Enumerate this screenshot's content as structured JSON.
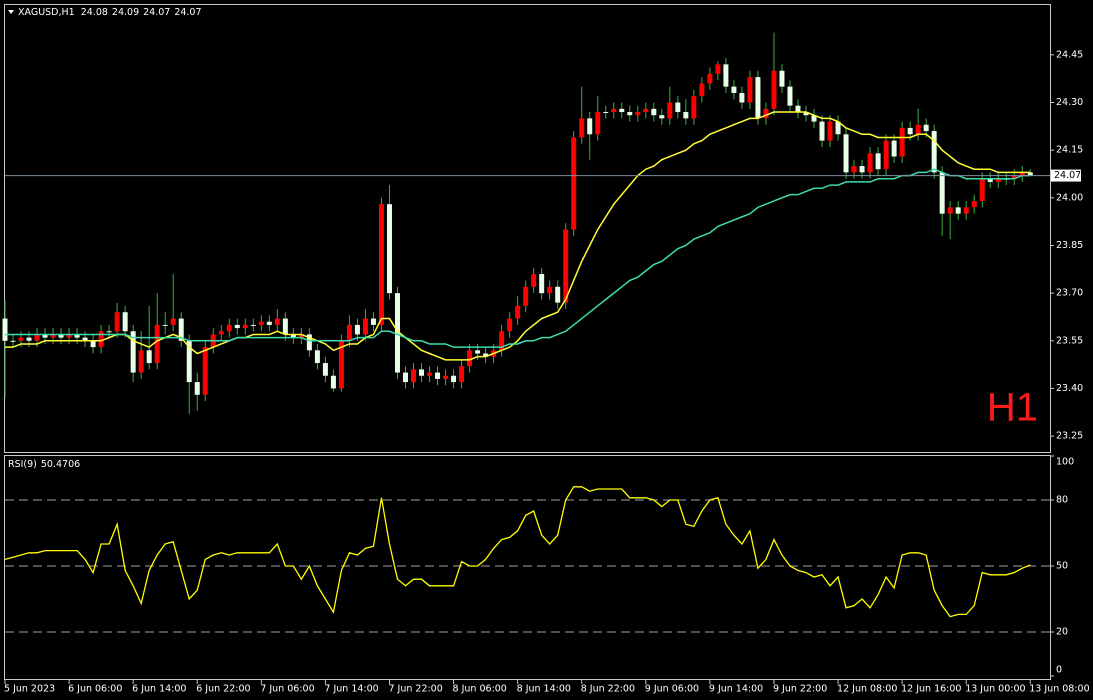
{
  "chart_data": [
    {
      "type": "candlestick",
      "title": "XAGUSD,H1",
      "timeframe_label": "H1",
      "categories": [
        "5 Jun 2023",
        null,
        null,
        null,
        null,
        null,
        null,
        null,
        "6 Jun 06:00",
        null,
        null,
        null,
        null,
        null,
        null,
        null,
        "6 Jun 14:00",
        null,
        null,
        null,
        null,
        null,
        null,
        null,
        "6 Jun 22:00",
        null,
        null,
        null,
        null,
        null,
        null,
        null,
        "7 Jun 06:00",
        null,
        null,
        null,
        null,
        null,
        null,
        null,
        "7 Jun 14:00",
        null,
        null,
        null,
        null,
        null,
        null,
        null,
        "7 Jun 22:00",
        null,
        null,
        null,
        null,
        null,
        null,
        null,
        "8 Jun 06:00",
        null,
        null,
        null,
        null,
        null,
        null,
        null,
        "8 Jun 14:00",
        null,
        null,
        null,
        null,
        null,
        null,
        null,
        "8 Jun 22:00",
        null,
        null,
        null,
        null,
        null,
        null,
        null,
        "9 Jun 06:00",
        null,
        null,
        null,
        null,
        null,
        null,
        null,
        "9 Jun 14:00",
        null,
        null,
        null,
        null,
        null,
        null,
        null,
        "9 Jun 22:00",
        null,
        null,
        null,
        null,
        null,
        null,
        null,
        "12 Jun 08:00",
        null,
        null,
        null,
        null,
        null,
        null,
        null,
        "12 Jun 16:00",
        null,
        null,
        null,
        null,
        null,
        null,
        null,
        "13 Jun 00:00",
        null,
        null,
        null,
        null,
        null,
        null,
        null,
        "13 Jun 08:00"
      ],
      "open": [
        23.62,
        23.55,
        23.55,
        23.56,
        23.55,
        23.57,
        23.56,
        23.57,
        23.56,
        23.57,
        23.56,
        23.55,
        23.53,
        23.58,
        23.58,
        23.64,
        23.58,
        23.45,
        23.52,
        23.48,
        23.6,
        23.6,
        23.62,
        23.55,
        23.42,
        23.38,
        23.53,
        23.57,
        23.58,
        23.6,
        23.59,
        23.6,
        23.6,
        23.61,
        23.6,
        23.62,
        23.57,
        23.56,
        23.57,
        23.52,
        23.48,
        23.44,
        23.4,
        23.55,
        23.6,
        23.57,
        23.62,
        23.6,
        23.98,
        23.7,
        23.45,
        23.42,
        23.46,
        23.44,
        23.45,
        23.43,
        23.44,
        23.42,
        23.47,
        23.52,
        23.51,
        23.5,
        23.52,
        23.58,
        23.62,
        23.66,
        23.72,
        23.76,
        23.7,
        23.72,
        23.67,
        23.9,
        24.19,
        24.25,
        24.2,
        24.27,
        24.27,
        24.28,
        24.27,
        24.26,
        24.27,
        24.28,
        24.26,
        24.25,
        24.3,
        24.27,
        24.25,
        24.32,
        24.36,
        24.39,
        24.42,
        24.35,
        24.33,
        24.3,
        24.38,
        24.25,
        24.28,
        24.4,
        24.35,
        24.29,
        24.27,
        24.26,
        24.24,
        24.18,
        24.24,
        24.2,
        24.08,
        24.1,
        24.08,
        24.14,
        24.09,
        24.18,
        24.13,
        24.22,
        24.2,
        24.23,
        24.21,
        24.08,
        23.95,
        23.97,
        23.95,
        23.97,
        23.99,
        24.06,
        24.05,
        24.06,
        24.06,
        24.07,
        24.08
      ],
      "high": [
        23.68,
        23.57,
        23.58,
        23.58,
        23.59,
        23.59,
        23.59,
        23.59,
        23.59,
        23.59,
        23.58,
        23.57,
        23.6,
        23.6,
        23.67,
        23.66,
        23.6,
        23.58,
        23.66,
        23.7,
        23.64,
        23.76,
        23.64,
        23.57,
        23.45,
        23.55,
        23.59,
        23.6,
        23.62,
        23.62,
        23.62,
        23.62,
        23.63,
        23.63,
        23.65,
        23.64,
        23.59,
        23.59,
        23.59,
        23.54,
        23.5,
        23.46,
        23.57,
        23.63,
        23.62,
        23.65,
        23.64,
        24.0,
        24.04,
        23.72,
        23.47,
        23.48,
        23.48,
        23.47,
        23.47,
        23.46,
        23.46,
        23.49,
        23.54,
        23.54,
        23.53,
        23.54,
        23.6,
        23.64,
        23.69,
        23.74,
        23.78,
        23.78,
        23.74,
        23.74,
        23.92,
        24.21,
        24.35,
        24.27,
        24.32,
        24.29,
        24.3,
        24.3,
        24.29,
        24.29,
        24.3,
        24.3,
        24.28,
        24.35,
        24.32,
        24.31,
        24.34,
        24.38,
        24.41,
        24.43,
        24.44,
        24.37,
        24.35,
        24.4,
        24.4,
        24.3,
        24.52,
        24.42,
        24.37,
        24.31,
        24.29,
        24.28,
        24.26,
        24.26,
        24.26,
        24.22,
        24.12,
        24.12,
        24.16,
        24.16,
        24.2,
        24.2,
        24.24,
        24.24,
        24.28,
        24.25,
        24.23,
        24.1,
        23.99,
        23.99,
        23.99,
        24.01,
        24.08,
        24.08,
        24.08,
        24.08,
        24.09,
        24.1,
        24.09
      ],
      "low": [
        23.37,
        23.53,
        23.53,
        23.53,
        23.53,
        23.54,
        23.54,
        23.54,
        23.54,
        23.54,
        23.53,
        23.51,
        23.51,
        23.56,
        23.56,
        23.56,
        23.42,
        23.43,
        23.46,
        23.46,
        23.57,
        23.58,
        23.53,
        23.32,
        23.33,
        23.36,
        23.51,
        23.55,
        23.56,
        23.57,
        23.57,
        23.58,
        23.58,
        23.58,
        23.58,
        23.55,
        23.54,
        23.54,
        23.5,
        23.46,
        23.42,
        23.39,
        23.39,
        23.53,
        23.55,
        23.55,
        23.58,
        23.58,
        23.68,
        23.43,
        23.4,
        23.4,
        23.42,
        23.42,
        23.41,
        23.41,
        23.4,
        23.4,
        23.45,
        23.49,
        23.48,
        23.48,
        23.5,
        23.56,
        23.6,
        23.64,
        23.7,
        23.68,
        23.68,
        23.65,
        23.65,
        23.88,
        24.17,
        24.12,
        24.18,
        24.25,
        24.25,
        24.25,
        24.24,
        24.24,
        24.25,
        24.24,
        24.23,
        24.23,
        24.25,
        24.23,
        24.23,
        24.3,
        24.34,
        24.37,
        24.33,
        24.31,
        24.28,
        24.28,
        24.23,
        24.23,
        24.26,
        24.33,
        24.27,
        24.25,
        24.24,
        24.22,
        24.16,
        24.16,
        24.18,
        24.06,
        24.06,
        24.06,
        24.06,
        24.07,
        24.07,
        24.11,
        24.11,
        24.18,
        24.18,
        24.19,
        24.06,
        23.88,
        23.87,
        23.93,
        23.93,
        23.95,
        23.97,
        24.03,
        24.03,
        24.04,
        24.04,
        24.05,
        24.07
      ],
      "close": [
        23.55,
        23.55,
        23.56,
        23.55,
        23.57,
        23.56,
        23.57,
        23.56,
        23.57,
        23.56,
        23.55,
        23.53,
        23.58,
        23.58,
        23.64,
        23.58,
        23.45,
        23.52,
        23.48,
        23.6,
        23.6,
        23.62,
        23.55,
        23.42,
        23.38,
        23.53,
        23.57,
        23.58,
        23.6,
        23.59,
        23.6,
        23.6,
        23.61,
        23.6,
        23.62,
        23.57,
        23.56,
        23.57,
        23.52,
        23.48,
        23.44,
        23.4,
        23.55,
        23.6,
        23.57,
        23.62,
        23.6,
        23.98,
        23.7,
        23.45,
        23.42,
        23.46,
        23.44,
        23.45,
        23.43,
        23.44,
        23.42,
        23.47,
        23.52,
        23.51,
        23.5,
        23.52,
        23.58,
        23.62,
        23.66,
        23.72,
        23.76,
        23.7,
        23.72,
        23.67,
        23.9,
        24.19,
        24.25,
        24.2,
        24.27,
        24.27,
        24.28,
        24.27,
        24.26,
        24.27,
        24.28,
        24.26,
        24.25,
        24.3,
        24.27,
        24.25,
        24.32,
        24.36,
        24.39,
        24.42,
        24.35,
        24.33,
        24.3,
        24.38,
        24.25,
        24.28,
        24.4,
        24.35,
        24.29,
        24.27,
        24.26,
        24.24,
        24.18,
        24.24,
        24.2,
        24.08,
        24.1,
        24.08,
        24.14,
        24.09,
        24.18,
        24.13,
        24.22,
        24.2,
        24.23,
        24.21,
        24.08,
        23.95,
        23.97,
        23.95,
        23.97,
        23.99,
        24.06,
        24.05,
        24.06,
        24.06,
        24.07,
        24.08,
        24.07
      ],
      "up_color": "#ff0000",
      "down_color": "#e8ffe8",
      "wick_color": "#3cb043",
      "series": [
        {
          "color": "#ffff33",
          "values": [
            23.53,
            23.53,
            23.54,
            23.54,
            23.54,
            23.55,
            23.55,
            23.55,
            23.55,
            23.55,
            23.55,
            23.55,
            23.55,
            23.56,
            23.57,
            23.57,
            23.55,
            23.54,
            23.53,
            23.55,
            23.56,
            23.57,
            23.56,
            23.53,
            23.51,
            23.52,
            23.53,
            23.54,
            23.55,
            23.56,
            23.56,
            23.57,
            23.57,
            23.57,
            23.58,
            23.57,
            23.57,
            23.57,
            23.56,
            23.55,
            23.54,
            23.52,
            23.53,
            23.54,
            23.54,
            23.56,
            23.57,
            23.62,
            23.62,
            23.58,
            23.56,
            23.54,
            23.52,
            23.51,
            23.5,
            23.49,
            23.49,
            23.49,
            23.49,
            23.5,
            23.5,
            23.51,
            23.52,
            23.53,
            23.55,
            23.58,
            23.6,
            23.62,
            23.63,
            23.64,
            23.68,
            23.74,
            23.8,
            23.85,
            23.9,
            23.94,
            23.98,
            24.01,
            24.04,
            24.07,
            24.09,
            24.1,
            24.12,
            24.13,
            24.14,
            24.15,
            24.17,
            24.18,
            24.2,
            24.21,
            24.22,
            24.23,
            24.24,
            24.25,
            24.25,
            24.26,
            24.27,
            24.27,
            24.27,
            24.27,
            24.27,
            24.26,
            24.25,
            24.25,
            24.24,
            24.22,
            24.21,
            24.2,
            24.2,
            24.19,
            24.19,
            24.19,
            24.19,
            24.19,
            24.2,
            24.2,
            24.18,
            24.15,
            24.13,
            24.11,
            24.1,
            24.09,
            24.09,
            24.09,
            24.08,
            24.08,
            24.08,
            24.08,
            24.08
          ]
        },
        {
          "color": "#3cdcb0",
          "values": [
            23.57,
            23.57,
            23.57,
            23.57,
            23.57,
            23.57,
            23.57,
            23.57,
            23.57,
            23.57,
            23.57,
            23.57,
            23.57,
            23.57,
            23.57,
            23.57,
            23.56,
            23.56,
            23.56,
            23.56,
            23.56,
            23.56,
            23.56,
            23.55,
            23.55,
            23.55,
            23.55,
            23.55,
            23.55,
            23.56,
            23.56,
            23.56,
            23.56,
            23.56,
            23.56,
            23.56,
            23.56,
            23.56,
            23.55,
            23.55,
            23.55,
            23.55,
            23.55,
            23.55,
            23.56,
            23.56,
            23.56,
            23.58,
            23.58,
            23.57,
            23.56,
            23.55,
            23.55,
            23.54,
            23.54,
            23.54,
            23.53,
            23.53,
            23.53,
            23.53,
            23.53,
            23.53,
            23.53,
            23.54,
            23.54,
            23.55,
            23.55,
            23.56,
            23.56,
            23.57,
            23.58,
            23.6,
            23.62,
            23.64,
            23.66,
            23.68,
            23.7,
            23.72,
            23.74,
            23.75,
            23.77,
            23.79,
            23.8,
            23.82,
            23.84,
            23.85,
            23.87,
            23.88,
            23.89,
            23.91,
            23.92,
            23.93,
            23.94,
            23.95,
            23.97,
            23.98,
            23.99,
            24.0,
            24.01,
            24.01,
            24.02,
            24.03,
            24.03,
            24.04,
            24.04,
            24.05,
            24.05,
            24.05,
            24.05,
            24.06,
            24.06,
            24.06,
            24.07,
            24.07,
            24.08,
            24.08,
            24.09,
            24.08,
            24.07,
            24.07,
            24.06,
            24.06,
            24.06,
            24.06,
            24.06,
            24.06,
            24.06,
            24.07,
            24.07
          ]
        }
      ],
      "ylim": [
        23.2,
        24.61
      ],
      "yticks": [
        24.45,
        {
          "value": 24.3,
          "label": "24.30"
        },
        24.15,
        {
          "value": 24,
          "label": "24.00"
        },
        23.85,
        {
          "value": 23.7,
          "label": "23.70"
        },
        23.55,
        {
          "value": 23.4,
          "label": "23.40"
        },
        23.25
      ],
      "grid": false
    },
    {
      "type": "line",
      "title": "RSI(9)",
      "series": [
        {
          "color": "#ffff00",
          "values": [
            53,
            54,
            55,
            56,
            56,
            57,
            57,
            57,
            57,
            57,
            53,
            47,
            60,
            60,
            69,
            48,
            41,
            33,
            48,
            55,
            60,
            61,
            48,
            35,
            39,
            53,
            55,
            56,
            55,
            56,
            56,
            56,
            56,
            56,
            60,
            50,
            50,
            44,
            50,
            41,
            35,
            29,
            48,
            56,
            55,
            58,
            59,
            81,
            60,
            44,
            41,
            44,
            44,
            41,
            41,
            41,
            41,
            52,
            50,
            50,
            53,
            58,
            62,
            63,
            66,
            73,
            75,
            64,
            60,
            64,
            80,
            86,
            86,
            84,
            85,
            85,
            85,
            85,
            81,
            81,
            81,
            80,
            77,
            80,
            80,
            69,
            68,
            75,
            80,
            81,
            69,
            64,
            60,
            66,
            49,
            53,
            62,
            55,
            50,
            48,
            47,
            45,
            46,
            41,
            45,
            31,
            32,
            35,
            31,
            37,
            45,
            40,
            55,
            56,
            56,
            55,
            39,
            32,
            27,
            28,
            28,
            32,
            47,
            46,
            46,
            46,
            47,
            49,
            50.4706
          ]
        }
      ],
      "ylim": [
        0,
        100
      ],
      "yticks": [
        100,
        80,
        50,
        20,
        0
      ],
      "levels": [
        80,
        50,
        20
      ],
      "grid": false
    }
  ]
}
